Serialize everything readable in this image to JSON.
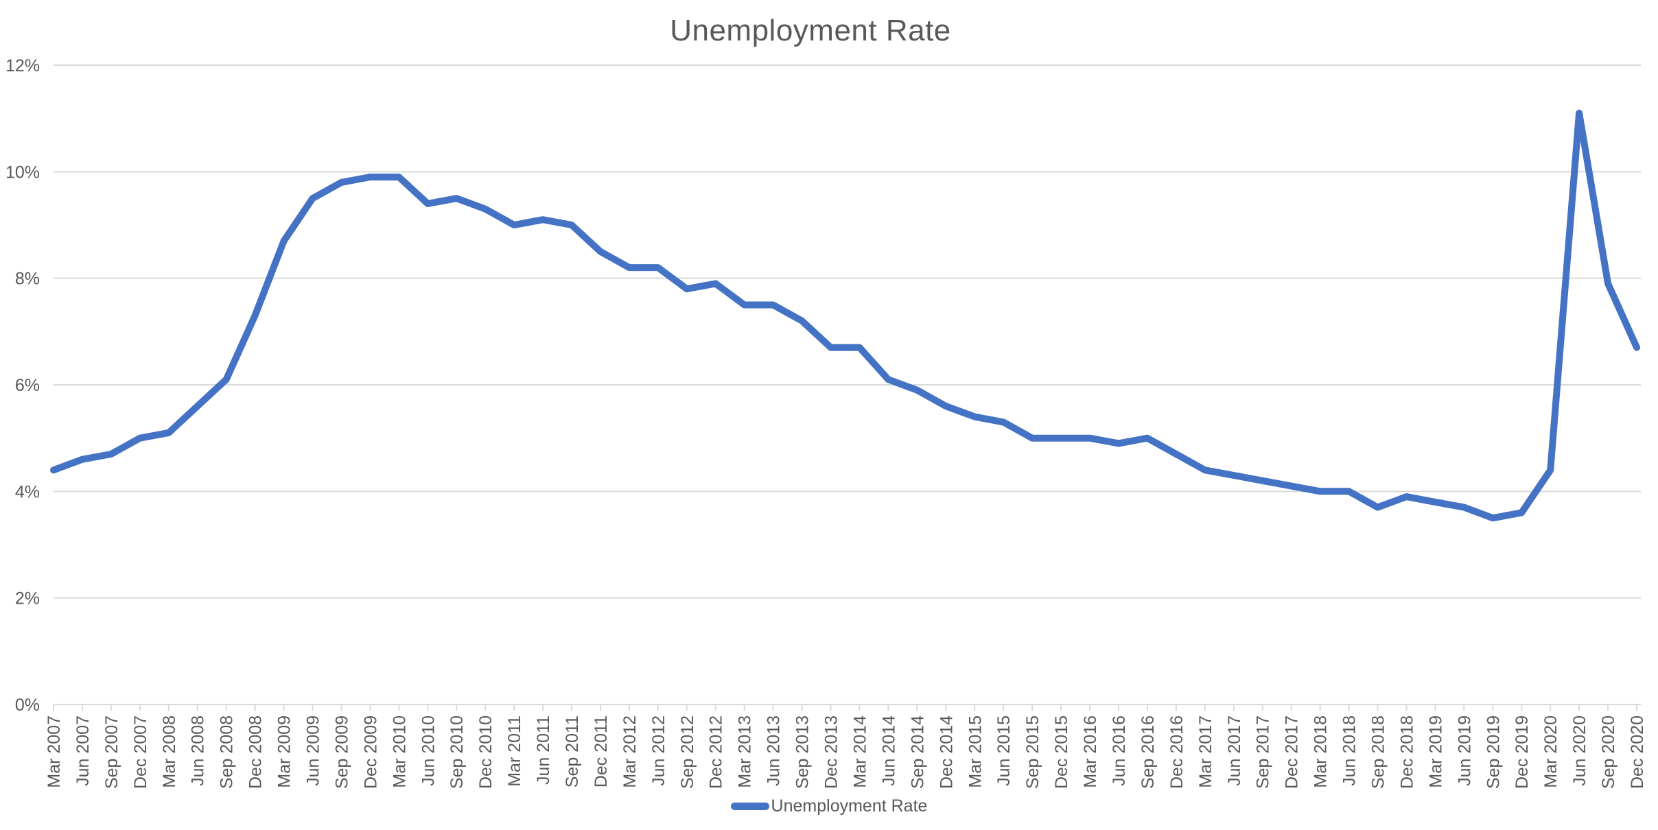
{
  "chart_data": {
    "type": "line",
    "title": "Unemployment Rate",
    "xlabel": "",
    "ylabel": "",
    "ylim": [
      0,
      12
    ],
    "y_tick_labels": [
      "0%",
      "2%",
      "4%",
      "6%",
      "8%",
      "10%",
      "12%"
    ],
    "grid": true,
    "legend": {
      "position": "bottom",
      "label": "Unemployment Rate"
    },
    "categories": [
      "Mar 2007",
      "Jun 2007",
      "Sep 2007",
      "Dec 2007",
      "Mar 2008",
      "Jun 2008",
      "Sep 2008",
      "Dec 2008",
      "Mar 2009",
      "Jun 2009",
      "Sep 2009",
      "Dec 2009",
      "Mar 2010",
      "Jun 2010",
      "Sep 2010",
      "Dec 2010",
      "Mar 2011",
      "Jun 2011",
      "Sep 2011",
      "Dec 2011",
      "Mar 2012",
      "Jun 2012",
      "Sep 2012",
      "Dec 2012",
      "Mar 2013",
      "Jun 2013",
      "Sep 2013",
      "Dec 2013",
      "Mar 2014",
      "Jun 2014",
      "Sep 2014",
      "Dec 2014",
      "Mar 2015",
      "Jun 2015",
      "Sep 2015",
      "Dec 2015",
      "Mar 2016",
      "Jun 2016",
      "Sep 2016",
      "Dec 2016",
      "Mar 2017",
      "Jun 2017",
      "Sep 2017",
      "Dec 2017",
      "Mar 2018",
      "Jun 2018",
      "Sep 2018",
      "Dec 2018",
      "Mar 2019",
      "Jun 2019",
      "Sep 2019",
      "Dec 2019",
      "Mar 2020",
      "Jun 2020",
      "Sep 2020",
      "Dec 2020"
    ],
    "series": [
      {
        "name": "Unemployment Rate",
        "color": "#4472C4",
        "values": [
          4.4,
          4.6,
          4.7,
          5.0,
          5.1,
          5.6,
          6.1,
          7.3,
          8.7,
          9.5,
          9.8,
          9.9,
          9.9,
          9.4,
          9.5,
          9.3,
          9.0,
          9.1,
          9.0,
          8.5,
          8.2,
          8.2,
          7.8,
          7.9,
          7.5,
          7.5,
          7.2,
          6.7,
          6.7,
          6.1,
          5.9,
          5.6,
          5.4,
          5.3,
          5.0,
          5.0,
          5.0,
          4.9,
          5.0,
          4.7,
          4.4,
          4.3,
          4.2,
          4.1,
          4.0,
          4.0,
          3.7,
          3.9,
          3.8,
          3.7,
          3.5,
          3.6,
          4.4,
          11.1,
          7.9,
          6.7
        ]
      }
    ]
  },
  "colors": {
    "line": "#4472C4",
    "gridline": "#D9D9D9",
    "axis_line": "#D9D9D9",
    "tick_mark": "#D9D9D9",
    "axis_text": "#595959",
    "title_text": "#595959",
    "background": "#FFFFFF"
  }
}
